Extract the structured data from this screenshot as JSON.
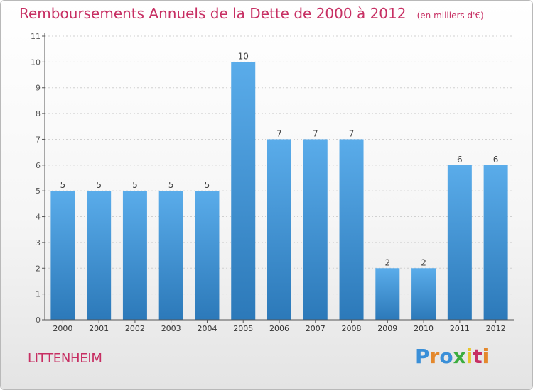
{
  "header": {
    "title": "Remboursements Annuels de la Dette de 2000 à 2012",
    "unit": "(en milliers d'€)"
  },
  "commune": "LITTENHEIM",
  "brand": {
    "name": "Proxiti",
    "letters": [
      "P",
      "r",
      "o",
      "x",
      "i",
      "t",
      "i"
    ],
    "letter_colors": [
      "#3a8fd8",
      "#e4882c",
      "#3a8fd8",
      "#3cad3f",
      "#e8c52a",
      "#c72f63",
      "#e4882c"
    ]
  },
  "colors": {
    "bar_top": "#5aacea",
    "bar_bottom": "#2c79b9",
    "accent": "#c72f63",
    "axis": "#555555",
    "grid": "#d0d0d0"
  },
  "chart_data": {
    "type": "bar",
    "categories": [
      "2000",
      "2001",
      "2002",
      "2003",
      "2004",
      "2005",
      "2006",
      "2007",
      "2008",
      "2009",
      "2010",
      "2011",
      "2012"
    ],
    "values": [
      5,
      5,
      5,
      5,
      5,
      10,
      7,
      7,
      7,
      2,
      2,
      6,
      6
    ],
    "data_labels": [
      "5",
      "5",
      "5",
      "5",
      "5",
      "10",
      "7",
      "7",
      "7",
      "2",
      "2",
      "6",
      "6"
    ],
    "yticks": [
      0,
      1,
      2,
      3,
      4,
      5,
      6,
      7,
      8,
      9,
      10,
      11
    ],
    "ylim": [
      0,
      11
    ],
    "xlabel": "",
    "ylabel": "",
    "grid": true
  }
}
